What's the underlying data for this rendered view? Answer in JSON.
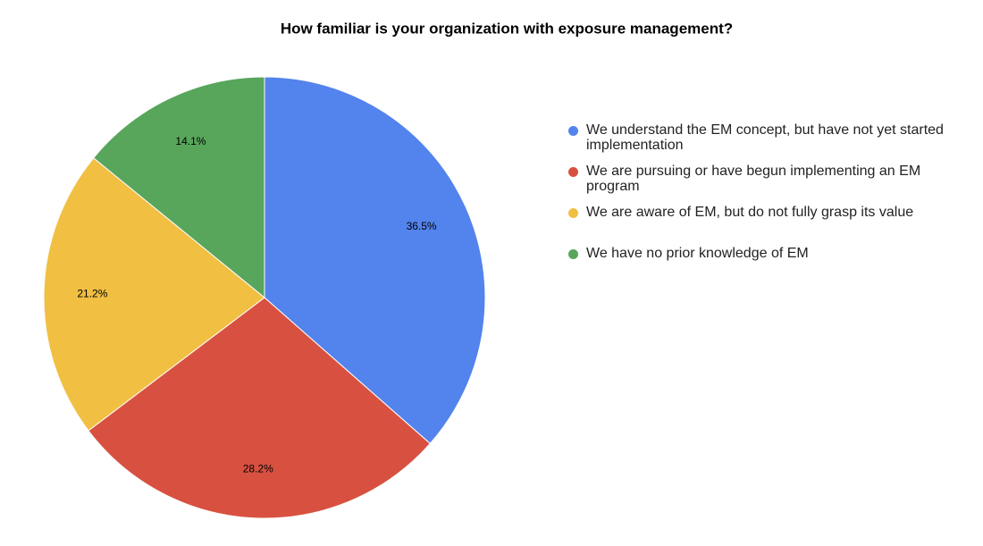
{
  "chart_data": {
    "type": "pie",
    "title": "How familiar is your organization with exposure management?",
    "categories": [
      "We understand the EM concept, but have not yet started implementation",
      "We are pursuing or have begun implementing an EM program",
      "We are aware of EM, but do not fully grasp its value",
      "We have no prior knowledge of EM"
    ],
    "values": [
      36.5,
      28.2,
      21.2,
      14.1
    ],
    "value_labels": [
      "36.5%",
      "28.2%",
      "21.2%",
      "14.1%"
    ],
    "colors": [
      "#5383ec",
      "#d85140",
      "#f1bf42",
      "#58a65c"
    ],
    "legend": "right"
  }
}
